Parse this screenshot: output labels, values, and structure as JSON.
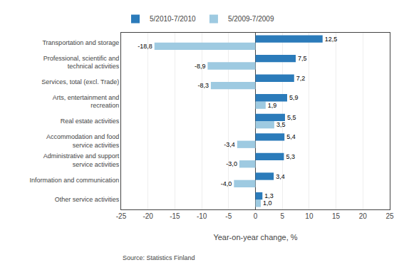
{
  "chart_data": {
    "type": "bar",
    "orientation": "horizontal",
    "categories": [
      "Other service activities",
      "Information and communication",
      "Administrative and support\nservice activities",
      "Accommodation and food\nservice activities",
      "Real estate activities",
      "Arts, entertainment and\nrecreation",
      "Services, total (excl. Trade)",
      "Professional, scientific and\ntechnical activities",
      "Transportation and storage"
    ],
    "series": [
      {
        "name": "5/2010-7/2010",
        "color": "#2b7bba",
        "values": [
          1.3,
          3.4,
          5.3,
          5.4,
          5.5,
          5.9,
          7.2,
          7.5,
          12.5
        ],
        "value_labels": [
          "1,3",
          "3,4",
          "5,3",
          "5,4",
          "5,5",
          "5,9",
          "7,2",
          "7,5",
          "12,5"
        ]
      },
      {
        "name": "5/2009-7/2009",
        "color": "#9ecae1",
        "values": [
          1.0,
          -4.0,
          -3.0,
          -3.4,
          3.5,
          1.9,
          -8.3,
          -8.9,
          -18.8
        ],
        "value_labels": [
          "1,0",
          "-4,0",
          "-3,0",
          "-3,4",
          "3,5",
          "1,9",
          "-8,3",
          "-8,9",
          "-18,8"
        ]
      }
    ],
    "xlabel": "Year-on-year change, %",
    "xlim": [
      -25,
      25
    ],
    "xticks": [
      -25,
      -20,
      -15,
      -10,
      -5,
      0,
      5,
      10,
      15,
      20,
      25
    ],
    "grid": true,
    "legend": "top",
    "data_labels": true,
    "annotations": [
      "Source: Statistics Finland"
    ]
  }
}
